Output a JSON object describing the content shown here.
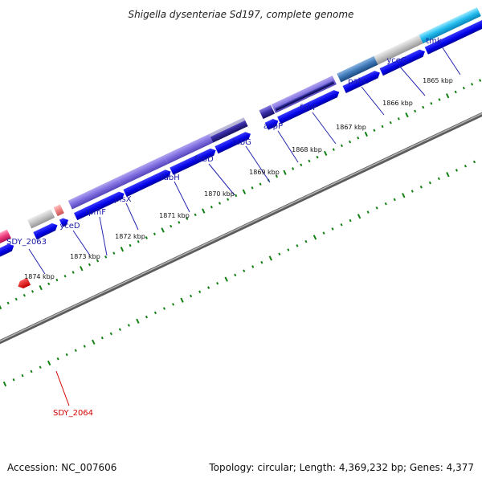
{
  "title": "Shigella dysenteriae Sd197, complete genome",
  "accession": "Accession: NC_007606",
  "summary": "Topology: circular; Length: 4,369,232 bp; Genes: 4,377",
  "colors": {
    "backbone": "#777777",
    "tick": "#138013",
    "gene_label": "#1a1aa6",
    "gene_label_highlight": "#d40000",
    "cds_forward": "#0000ee",
    "cds_reverse": "#ee0000"
  },
  "kbp_labels": [
    "1865 kbp",
    "1866 kbp",
    "1867 kbp",
    "1868 kbp",
    "1869 kbp",
    "1870 kbp",
    "1871 kbp",
    "1872 kbp",
    "1873 kbp",
    "1874 kbp"
  ],
  "gene_labels": [
    "tmk",
    "yceG",
    "pabC",
    "fabF",
    "acpP",
    "fabG",
    "fabD",
    "fabH",
    "plsX",
    "rpmF",
    "yceD",
    "SDY_2063",
    "SDY_2064"
  ]
}
